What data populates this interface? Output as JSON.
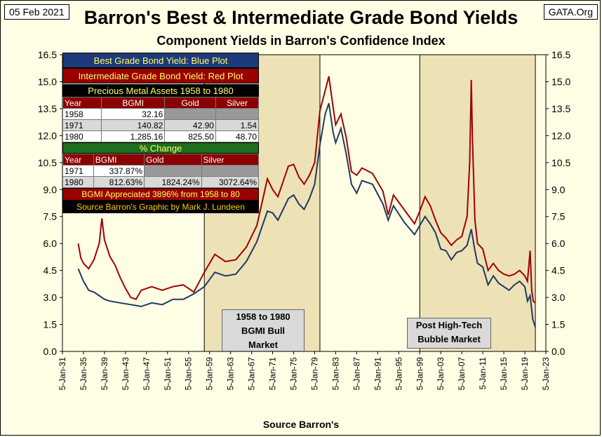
{
  "header": {
    "date": "05 Feb 2021",
    "source": "GATA.Org",
    "title": "Barron's Best & Intermediate Grade Bond Yields",
    "subtitle": "Component Yields in Barron's Confidence Index",
    "xlabel": "Source Barron's"
  },
  "info_box": {
    "best_label": "Best Grade Bond Yield: Blue Plot",
    "inter_label": "Intermediate Grade Bond Yield: Red Plot",
    "assets_title": "Precious Metal Assets 1958 to 1980",
    "assets_head": [
      "Year",
      "BGMI",
      "Gold",
      "Silver"
    ],
    "assets_rows": [
      [
        "1958",
        "32.16",
        "",
        ""
      ],
      [
        "1971",
        "140.82",
        "42.90",
        "1.54"
      ],
      [
        "1980",
        "1,285.16",
        "825.50",
        "48.70"
      ]
    ],
    "change_title": "% Change",
    "change_head": [
      "Year",
      "BGMI",
      "Gold",
      "Silver"
    ],
    "change_rows": [
      [
        "1971",
        "337.87%",
        "",
        ""
      ],
      [
        "1980",
        "812.63%",
        "1824.24%",
        "3072.64%"
      ]
    ],
    "footer1": "BGMI Appreciated 3896% from 1958 to 80",
    "footer2": "Source Barron's  Graphic by Mark J. Lundeen"
  },
  "callouts": {
    "bull_line1": "1958  to 1980",
    "bull_line2": "BGMI Bull",
    "bull_line3": "Market",
    "post_line1": "Post High-Tech",
    "post_line2": "Bubble Market"
  },
  "colors": {
    "background": "#ffffe5",
    "shaded": "#ede2b6",
    "best": "#1f3864",
    "intermediate": "#a00000"
  },
  "chart_data": {
    "type": "line",
    "ylim": [
      0,
      16.5
    ],
    "yticks": [
      "0.0",
      "1.5",
      "3.0",
      "4.5",
      "6.0",
      "7.5",
      "9.0",
      "10.5",
      "12.0",
      "13.5",
      "15.0",
      "16.5"
    ],
    "xticks": [
      "5-Jan-31",
      "5-Jan-35",
      "5-Jan-39",
      "5-Jan-43",
      "5-Jan-47",
      "5-Jan-51",
      "5-Jan-55",
      "5-Jan-59",
      "5-Jan-63",
      "5-Jan-67",
      "5-Jan-71",
      "5-Jan-75",
      "5-Jan-79",
      "5-Jan-83",
      "5-Jan-87",
      "5-Jan-91",
      "5-Jan-95",
      "5-Jan-99",
      "5-Jan-03",
      "5-Jan-07",
      "5-Jan-11",
      "5-Jan-15",
      "5-Jan-19",
      "5-Jan-23"
    ],
    "xrange": [
      1931,
      2023
    ],
    "shaded_periods": [
      [
        1958,
        1980
      ],
      [
        1999,
        2021
      ]
    ],
    "series": [
      {
        "name": "Best Grade Bond Yield",
        "x": [
          1934,
          1935,
          1936,
          1937,
          1938,
          1939,
          1940,
          1942,
          1944,
          1946,
          1948,
          1950,
          1952,
          1954,
          1956,
          1958,
          1960,
          1962,
          1964,
          1966,
          1968,
          1970,
          1971,
          1972,
          1974,
          1975,
          1976,
          1977,
          1978,
          1979,
          1980,
          1981,
          1981.7,
          1982.5,
          1983,
          1984,
          1985,
          1986,
          1987,
          1988,
          1990,
          1992,
          1993,
          1994,
          1996,
          1998,
          1999,
          2000,
          2001,
          2002,
          2003,
          2004,
          2005,
          2006,
          2007,
          2008,
          2008.8,
          2009.5,
          2010,
          2011,
          2012,
          2013,
          2014,
          2015,
          2016,
          2017,
          2018,
          2019,
          2019.5,
          2020,
          2020.5,
          2021
        ],
        "values": [
          4.6,
          3.9,
          3.4,
          3.3,
          3.1,
          2.9,
          2.8,
          2.7,
          2.6,
          2.5,
          2.7,
          2.6,
          2.9,
          2.9,
          3.2,
          3.6,
          4.4,
          4.2,
          4.3,
          5.0,
          6.1,
          7.8,
          7.7,
          7.3,
          8.5,
          8.7,
          8.2,
          7.9,
          8.5,
          9.3,
          11.5,
          13.2,
          13.8,
          12.2,
          11.6,
          12.4,
          11.0,
          9.3,
          8.8,
          9.5,
          9.3,
          8.2,
          7.3,
          8.1,
          7.2,
          6.5,
          7.0,
          7.5,
          7.1,
          6.6,
          5.7,
          5.6,
          5.1,
          5.5,
          5.6,
          5.9,
          6.8,
          5.6,
          4.9,
          4.7,
          3.7,
          4.2,
          3.8,
          3.6,
          3.4,
          3.7,
          3.9,
          3.6,
          2.8,
          3.1,
          1.8,
          1.35
        ]
      },
      {
        "name": "Intermediate Grade Bond Yield",
        "x": [
          1934,
          1934.5,
          1935,
          1936,
          1937,
          1938,
          1938.5,
          1939,
          1940,
          1941,
          1942,
          1943,
          1944,
          1945,
          1946,
          1948,
          1950,
          1952,
          1954,
          1956,
          1958,
          1960,
          1962,
          1964,
          1966,
          1968,
          1970,
          1971,
          1972,
          1974,
          1975,
          1976,
          1977,
          1978,
          1979,
          1980,
          1981,
          1981.7,
          1982.5,
          1983,
          1984,
          1985,
          1986,
          1987,
          1988,
          1990,
          1992,
          1993,
          1994,
          1996,
          1998,
          1999,
          2000,
          2001,
          2002,
          2003,
          2004,
          2005,
          2006,
          2007,
          2008,
          2008.5,
          2008.8,
          2009,
          2009.5,
          2010,
          2011,
          2012,
          2013,
          2014,
          2015,
          2016,
          2017,
          2018,
          2019,
          2019.5,
          2020,
          2020.3,
          2020.6,
          2021
        ],
        "values": [
          6.0,
          5.2,
          4.9,
          4.6,
          5.1,
          6.0,
          7.4,
          6.2,
          5.3,
          4.8,
          4.1,
          3.5,
          3.0,
          2.9,
          3.4,
          3.6,
          3.4,
          3.6,
          3.7,
          3.3,
          4.4,
          5.4,
          5.0,
          5.1,
          5.8,
          7.0,
          9.6,
          9.0,
          8.6,
          10.3,
          10.4,
          9.7,
          9.3,
          9.8,
          10.5,
          13.4,
          14.5,
          15.3,
          13.6,
          12.6,
          13.2,
          11.9,
          10.0,
          9.8,
          10.2,
          9.9,
          8.9,
          7.6,
          8.7,
          7.9,
          7.1,
          7.8,
          8.6,
          8.1,
          7.3,
          6.6,
          6.3,
          5.9,
          6.2,
          6.4,
          7.5,
          10.5,
          15.1,
          12.0,
          7.3,
          6.0,
          5.7,
          4.5,
          4.9,
          4.5,
          4.3,
          4.2,
          4.3,
          4.5,
          4.2,
          3.9,
          5.6,
          3.4,
          2.8,
          2.7
        ]
      }
    ]
  }
}
